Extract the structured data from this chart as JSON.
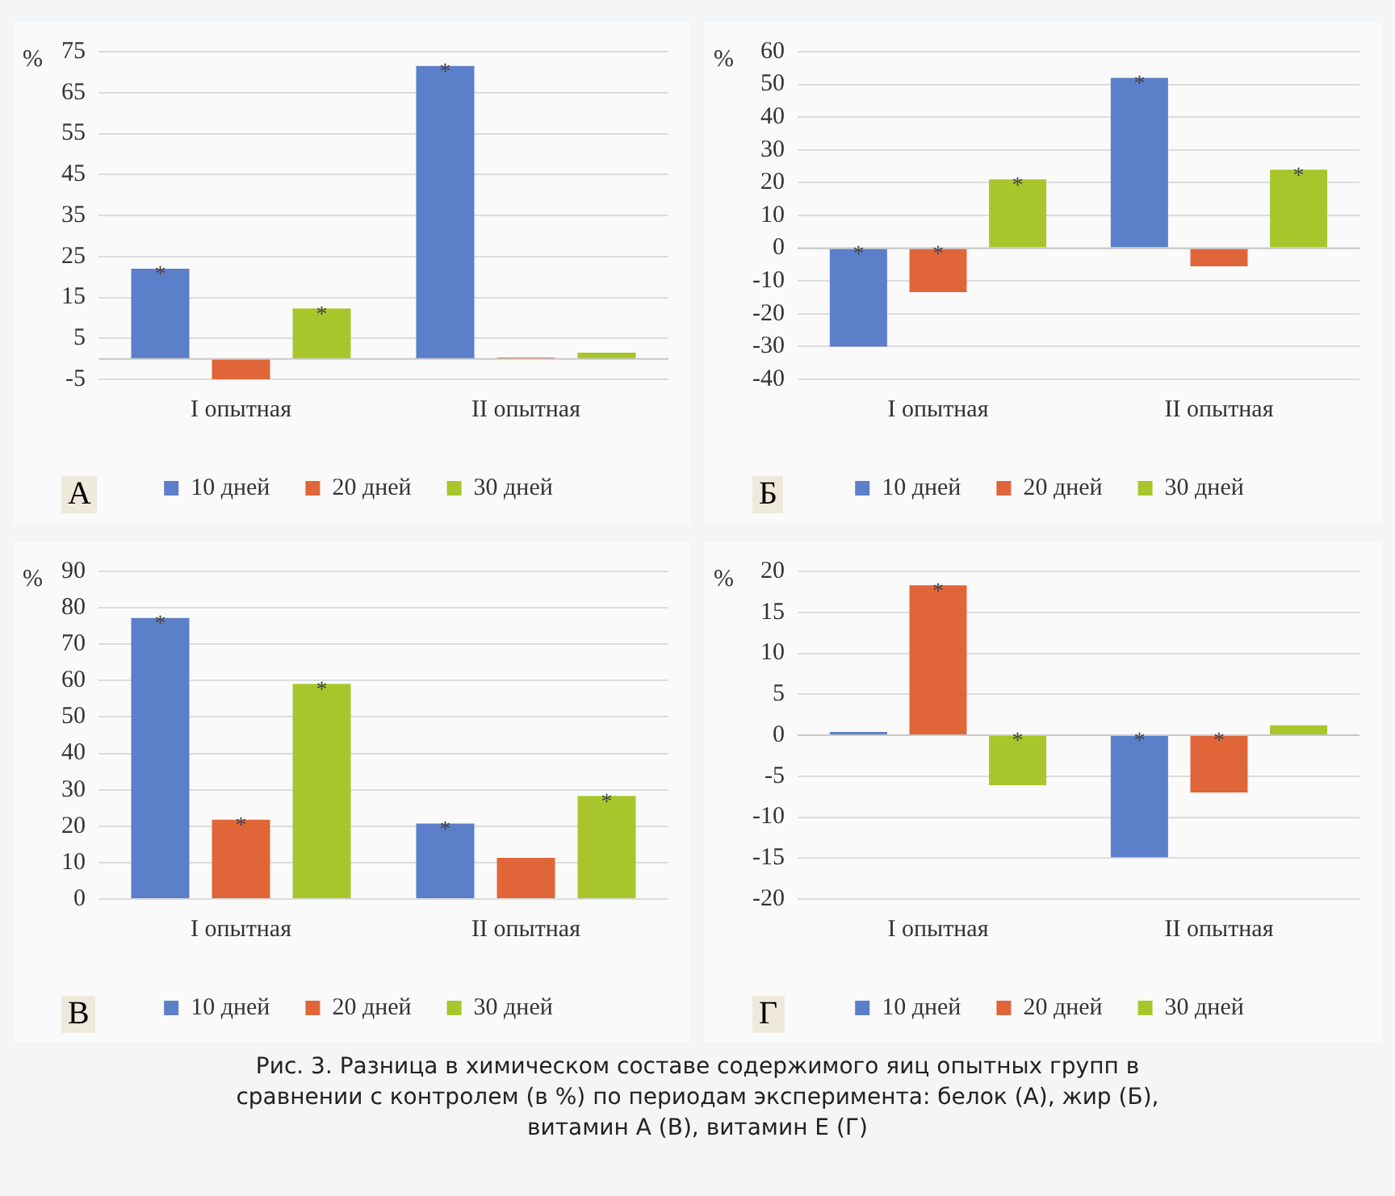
{
  "chart_data": [
    {
      "type": "bar",
      "title": "А",
      "ylabel": "%",
      "categories": [
        "I опытная",
        "II опытная"
      ],
      "series": [
        {
          "name": "10 дней",
          "color": "#5b7fc8",
          "values": [
            22,
            71.5
          ],
          "value_labels": [
            "*",
            "*"
          ]
        },
        {
          "name": "20 дней",
          "color": "#e0663a",
          "values": [
            -5,
            0.3
          ],
          "value_labels": [
            null,
            null
          ]
        },
        {
          "name": "30 дней",
          "color": "#a8c62c",
          "values": [
            12.3,
            1.5
          ],
          "value_labels": [
            "*",
            null
          ]
        }
      ],
      "ylim": [
        -5,
        75
      ],
      "yticks": [
        -5,
        5,
        15,
        25,
        35,
        45,
        55,
        65,
        75
      ],
      "grid": "y",
      "legend": "bottom"
    },
    {
      "type": "bar",
      "title": "Б",
      "ylabel": "%",
      "categories": [
        "I опытная",
        "II опытная"
      ],
      "series": [
        {
          "name": "10 дней",
          "color": "#5b7fc8",
          "values": [
            -30,
            52
          ],
          "value_labels": [
            "*",
            "*"
          ]
        },
        {
          "name": "20 дней",
          "color": "#e0663a",
          "values": [
            -13.4,
            -5.5
          ],
          "value_labels": [
            "*",
            null
          ]
        },
        {
          "name": "30 дней",
          "color": "#a8c62c",
          "values": [
            21,
            24
          ],
          "value_labels": [
            "*",
            "*"
          ]
        }
      ],
      "ylim": [
        -40,
        60
      ],
      "yticks": [
        -40,
        -30,
        -20,
        -10,
        0,
        10,
        20,
        30,
        40,
        50,
        60
      ],
      "grid": "y",
      "legend": "bottom"
    },
    {
      "type": "bar",
      "title": "В",
      "ylabel": "%",
      "categories": [
        "I опытная",
        "II опытная"
      ],
      "series": [
        {
          "name": "10 дней",
          "color": "#5b7fc8",
          "values": [
            77.2,
            20.7
          ],
          "value_labels": [
            "*",
            "*"
          ]
        },
        {
          "name": "20 дней",
          "color": "#e0663a",
          "values": [
            21.8,
            11.3
          ],
          "value_labels": [
            "*",
            null
          ]
        },
        {
          "name": "30 дней",
          "color": "#a8c62c",
          "values": [
            59.1,
            28.3
          ],
          "value_labels": [
            "*",
            "*"
          ]
        }
      ],
      "ylim": [
        0,
        90
      ],
      "yticks": [
        0,
        10,
        20,
        30,
        40,
        50,
        60,
        70,
        80,
        90
      ],
      "grid": "y",
      "legend": "bottom"
    },
    {
      "type": "bar",
      "title": "Г",
      "ylabel": "%",
      "categories": [
        "I опытная",
        "II опытная"
      ],
      "series": [
        {
          "name": "10 дней",
          "color": "#5b7fc8",
          "values": [
            0.4,
            -14.9
          ],
          "value_labels": [
            null,
            "*"
          ]
        },
        {
          "name": "20 дней",
          "color": "#e0663a",
          "values": [
            18.3,
            -7
          ],
          "value_labels": [
            "*",
            "*"
          ]
        },
        {
          "name": "30 дней",
          "color": "#a8c62c",
          "values": [
            -6.1,
            1.2
          ],
          "value_labels": [
            "*",
            null
          ]
        }
      ],
      "ylim": [
        -20,
        20
      ],
      "yticks": [
        -20,
        -15,
        -10,
        -5,
        0,
        5,
        10,
        15,
        20
      ],
      "grid": "y",
      "legend": "bottom",
      "annotations": [
        "Рис. 3. Разница в химическом составе содержимого яиц опытных групп в сравнении с контролем (в %) по периодам эксперимента: белок (А), жир (Б), витамин А (В), витамин Е (Г)"
      ]
    }
  ]
}
